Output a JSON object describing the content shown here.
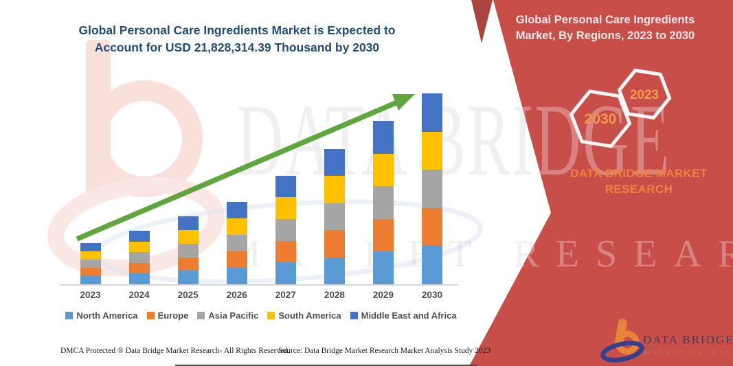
{
  "header": {
    "left_title": "Global Personal Care Ingredients Market is Expected to Account for USD 21,828,314.39 Thousand by 2030",
    "right_title": "Global Personal Care Ingredients Market, By Regions, 2023 to 2030"
  },
  "side_panel": {
    "panel_color": "#C84E4A",
    "corner_triangle_color": "#AE443F",
    "hexagons": [
      {
        "label": "2030"
      },
      {
        "label": "2023"
      }
    ],
    "hexagon_label_color": "#F2994A",
    "brand_caption_line1": "DATA BRIDGE MARKET",
    "brand_caption_line2": "RESEARCH"
  },
  "chart_data": {
    "type": "bar",
    "stacked": true,
    "title": "Global Personal Care Ingredients Market, By Regions, 2023 to 2030",
    "categories": [
      "2023",
      "2024",
      "2025",
      "2026",
      "2027",
      "2028",
      "2029",
      "2030"
    ],
    "series": [
      {
        "name": "North America",
        "color": "#5B9BD5",
        "values": [
          4.3,
          5.6,
          7.1,
          8.6,
          11.4,
          14.2,
          17.1,
          20
        ]
      },
      {
        "name": "Europe",
        "color": "#ED7D31",
        "values": [
          4.3,
          5.6,
          7.1,
          8.6,
          11.4,
          14.2,
          17.1,
          20
        ]
      },
      {
        "name": "Asia Pacific",
        "color": "#A5A5A5",
        "values": [
          4.3,
          5.6,
          7.1,
          8.6,
          11.4,
          14.2,
          17.1,
          20
        ]
      },
      {
        "name": "South America",
        "color": "#FFC000",
        "values": [
          4.3,
          5.6,
          7.1,
          8.6,
          11.4,
          14.2,
          17.1,
          20
        ]
      },
      {
        "name": "Middle East and Africa",
        "color": "#4472C4",
        "values": [
          4.3,
          5.6,
          7.1,
          8.6,
          11.4,
          14.2,
          17.1,
          20
        ]
      }
    ],
    "units": "index, estimated from bar heights (2030 total = 100; stated 2030 market size = USD 21,828,314.39 thousand)",
    "xlabel": "",
    "ylabel": "",
    "y_axis_visible": false,
    "grid": false,
    "legend_position": "bottom",
    "trend_arrow": {
      "present": true,
      "color": "#5FA63E"
    }
  },
  "watermark": {
    "line1": "DATA BRIDGE",
    "line2": "MARKET RESEARCH"
  },
  "logo": {
    "name": "DATA BRIDGE",
    "caption": "MARKET RESEARCH"
  },
  "footer": {
    "dmca": "DMCA Protected ® Data Bridge Market Research-  All Rights Reserved.",
    "source": "Source: Data Bridge Market Research  Market Analysis Study 2023"
  },
  "colors": {
    "title_blue": "#1F4E79",
    "axis_gray": "#D6D6D6",
    "label_gray": "#4d4d4d"
  }
}
